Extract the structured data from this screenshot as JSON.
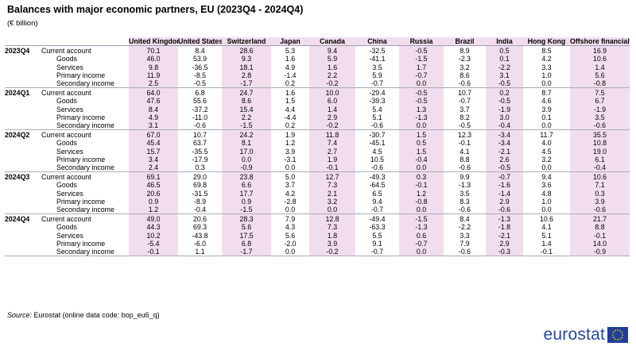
{
  "title": "Balances with major economic partners, EU (2023Q4 - 2024Q4)",
  "subtitle": "(€ billion)",
  "columns": [
    "United Kingdom",
    "United States",
    "Switzerland",
    "Japan",
    "Canada",
    "China",
    "Russia",
    "Brazil",
    "India",
    "Hong Kong",
    "Offshore financial centres"
  ],
  "indicators": [
    "Current account",
    "Goods",
    "Services",
    "Primary income",
    "Secondary income"
  ],
  "periods": [
    {
      "label": "2023Q4",
      "rows": [
        [
          "70.1",
          "8.4",
          "28.6",
          "5.3",
          "9.4",
          "-32.5",
          "-0.5",
          "8.9",
          "0.5",
          "8.5",
          "16.9"
        ],
        [
          "46.0",
          "53.9",
          "9.3",
          "1.6",
          "5.9",
          "-41.1",
          "-1.5",
          "-2.3",
          "0.1",
          "4.2",
          "10.6"
        ],
        [
          "9.8",
          "-36.5",
          "18.1",
          "4.9",
          "1.6",
          "3.5",
          "1.7",
          "3.2",
          "-2.2",
          "3.3",
          "1.4"
        ],
        [
          "11.9",
          "-8.5",
          "2.8",
          "-1.4",
          "2.2",
          "5.9",
          "-0.7",
          "8.6",
          "3.1",
          "1.0",
          "5.6"
        ],
        [
          "2.5",
          "-0.5",
          "-1.7",
          "0.2",
          "-0.2",
          "-0.7",
          "0.0",
          "-0.6",
          "-0.5",
          "0.0",
          "-0.8"
        ]
      ]
    },
    {
      "label": "2024Q1",
      "rows": [
        [
          "64.0",
          "6.8",
          "24.7",
          "1.6",
          "10.0",
          "-29.4",
          "-0.5",
          "10.7",
          "0.2",
          "8.7",
          "7.5"
        ],
        [
          "47.6",
          "55.6",
          "8.6",
          "1.5",
          "6.0",
          "-39.3",
          "-0.5",
          "-0.7",
          "-0.5",
          "4.6",
          "6.7"
        ],
        [
          "8.4",
          "-37.2",
          "15.4",
          "4.4",
          "1.4",
          "5.4",
          "1.3",
          "3.7",
          "-1.9",
          "3.9",
          "-1.9"
        ],
        [
          "4.9",
          "-11.0",
          "2.2",
          "-4.4",
          "2.9",
          "5.1",
          "-1.3",
          "8.2",
          "3.0",
          "0.1",
          "3.5"
        ],
        [
          "3.1",
          "-0.6",
          "-1.5",
          "0.2",
          "-0.2",
          "-0.6",
          "0.0",
          "-0.5",
          "-0.4",
          "0.0",
          "-0.6"
        ]
      ]
    },
    {
      "label": "2024Q2",
      "rows": [
        [
          "67.0",
          "10.7",
          "24.2",
          "1.9",
          "11.8",
          "-30.7",
          "1.5",
          "12.3",
          "-3.4",
          "11.7",
          "35.5"
        ],
        [
          "45.4",
          "63.7",
          "8.1",
          "1.2",
          "7.4",
          "-45.1",
          "0.5",
          "-0.1",
          "-3.4",
          "4.0",
          "10.8"
        ],
        [
          "15.7",
          "-35.5",
          "17.0",
          "3.9",
          "2.7",
          "4.5",
          "1.5",
          "4.1",
          "-2.1",
          "4.5",
          "19.0"
        ],
        [
          "3.4",
          "-17.9",
          "0.0",
          "-3.1",
          "1.9",
          "10.5",
          "-0.4",
          "8.8",
          "2.6",
          "3.2",
          "6.1"
        ],
        [
          "2.4",
          "0.3",
          "-0.9",
          "0.0",
          "-0.1",
          "-0.6",
          "0.0",
          "-0.6",
          "-0.5",
          "0.0",
          "-0.4"
        ]
      ]
    },
    {
      "label": "2024Q3",
      "rows": [
        [
          "69.1",
          "29.0",
          "23.8",
          "5.0",
          "12.7",
          "-49.3",
          "0.3",
          "9.9",
          "-0.7",
          "9.4",
          "10.6"
        ],
        [
          "46.5",
          "69.8",
          "6.6",
          "3.7",
          "7.3",
          "-64.5",
          "-0.1",
          "-1.3",
          "-1.6",
          "3.6",
          "7.1"
        ],
        [
          "20.6",
          "-31.5",
          "17.7",
          "4.2",
          "2.1",
          "6.5",
          "1.2",
          "3.5",
          "-1.4",
          "4.8",
          "0.3"
        ],
        [
          "0.9",
          "-8.9",
          "0.9",
          "-2.8",
          "3.2",
          "9.4",
          "-0.8",
          "8.3",
          "2.9",
          "1.0",
          "3.9"
        ],
        [
          "1.2",
          "-0.4",
          "-1.5",
          "0.0",
          "0.0",
          "-0.7",
          "0.0",
          "-0.6",
          "-0.6",
          "0.0",
          "-0.6"
        ]
      ]
    },
    {
      "label": "2024Q4",
      "rows": [
        [
          "49.0",
          "20.6",
          "28.3",
          "7.9",
          "12.8",
          "-49.4",
          "-1.5",
          "8.4",
          "-1.3",
          "10.6",
          "21.7"
        ],
        [
          "44.3",
          "69.3",
          "5.6",
          "4.3",
          "7.3",
          "-63.3",
          "-1.3",
          "-2.2",
          "-1.8",
          "4.1",
          "8.8"
        ],
        [
          "10.2",
          "-43.8",
          "17.5",
          "5.6",
          "1.8",
          "5.5",
          "0.6",
          "3.3",
          "-2.1",
          "5.1",
          "-0.1"
        ],
        [
          "-5.4",
          "-6.0",
          "6.8",
          "-2.0",
          "3.9",
          "9.1",
          "-0.7",
          "7.9",
          "2.9",
          "1.4",
          "14.0"
        ],
        [
          "-0.1",
          "1.1",
          "-1.7",
          "0.0",
          "-0.2",
          "-0.7",
          "0.0",
          "-0.6",
          "-0.3",
          "-0.1",
          "-0.9"
        ]
      ]
    }
  ],
  "source": {
    "label": "Source:",
    "text": "Eurostat (online data code: bop_eu6_q)"
  },
  "logo": {
    "text": "eurostat",
    "flag_color": "#1f3f99",
    "star_color": "#ffcc00"
  },
  "colors": {
    "header_bg": "#f2dded",
    "shade_bg": "#f2dded",
    "rule": "#a7acbd"
  }
}
